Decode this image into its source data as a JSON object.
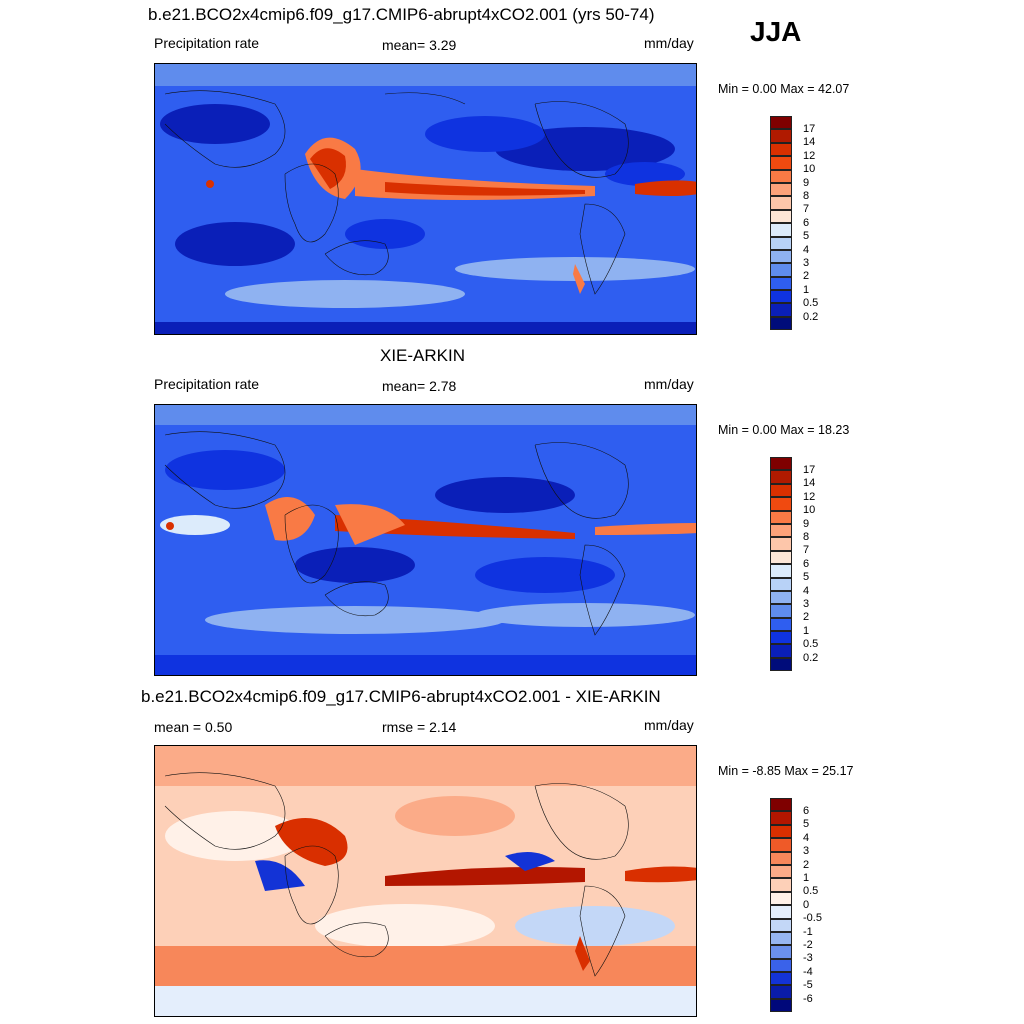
{
  "season": "JJA",
  "panels": [
    {
      "id": "model",
      "title": "b.e21.BCO2x4cmip6.f09_g17.CMIP6-abrupt4xCO2.001 (yrs 50-74)",
      "left_label": "Precipitation rate",
      "mid_label": "mean=   3.29",
      "units": "mm/day",
      "minmax": "Min =   0.00 Max =  42.07",
      "colorbar_labels": [
        "17",
        "14",
        "12",
        "10",
        "9",
        "8",
        "7",
        "6",
        "5",
        "4",
        "3",
        "2",
        "1",
        "0.5",
        "0.2"
      ]
    },
    {
      "id": "obs",
      "title": "XIE-ARKIN",
      "left_label": "Precipitation rate",
      "mid_label": "mean=   2.78",
      "units": "mm/day",
      "minmax": "Min =   0.00 Max =  18.23",
      "colorbar_labels": [
        "17",
        "14",
        "12",
        "10",
        "9",
        "8",
        "7",
        "6",
        "5",
        "4",
        "3",
        "2",
        "1",
        "0.5",
        "0.2"
      ]
    },
    {
      "id": "diff",
      "title": "b.e21.BCO2x4cmip6.f09_g17.CMIP6-abrupt4xCO2.001 - XIE-ARKIN",
      "left_label": "mean =   0.50",
      "mid_label": "rmse =   2.14",
      "units": "mm/day",
      "minmax": "Min =  -8.85 Max =  25.17",
      "colorbar_labels": [
        "6",
        "5",
        "4",
        "3",
        "2",
        "1",
        "0.5",
        "0",
        "-0.5",
        "-1",
        "-2",
        "-3",
        "-4",
        "-5",
        "-6"
      ]
    }
  ],
  "colorscales": {
    "precip": [
      "#7f0000",
      "#b01a00",
      "#d93000",
      "#f04a10",
      "#f97a45",
      "#fca27a",
      "#fdc6aa",
      "#fde6d6",
      "#dcebfb",
      "#b8d2f7",
      "#8fb2f1",
      "#5f8ced",
      "#2f5ef0",
      "#0f33e0",
      "#0a1fb8",
      "#000c7a"
    ],
    "diff": [
      "#7f0000",
      "#b31600",
      "#d92f00",
      "#ef5a28",
      "#f7875a",
      "#fbab88",
      "#fdd0b8",
      "#fff1e8",
      "#e4eefc",
      "#c3d7f7",
      "#97b6f1",
      "#6b90ec",
      "#3a62ea",
      "#1333d6",
      "#0a1ca8",
      "#00087a"
    ]
  }
}
